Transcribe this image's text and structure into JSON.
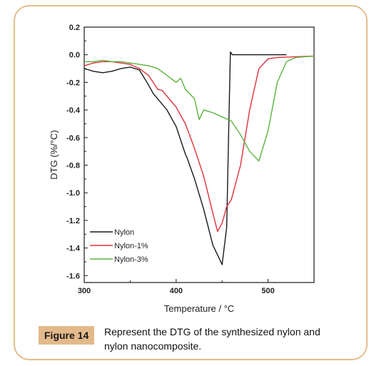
{
  "figure": {
    "badge": "Figure 14",
    "caption": "Represent the DTG of the synthesized nylon and nylon nanocomposite.",
    "border_color": "#e3bd8a",
    "badge_color": "#e3b98a"
  },
  "chart_data": {
    "type": "line",
    "title": "",
    "xlabel": "Temperature / °C",
    "ylabel": "DTG (%/°C)",
    "xlim": [
      300,
      550
    ],
    "ylim": [
      -1.65,
      0.2
    ],
    "x_ticks": [
      "300",
      "400",
      "500"
    ],
    "y_ticks": [
      "0.2",
      "0.0",
      "-0.2",
      "-0.4",
      "-0.6",
      "-0.8",
      "-1.0",
      "-1.2",
      "-1.4",
      "-1.6"
    ],
    "legend_position": "bottom-left",
    "grid": false,
    "series": [
      {
        "name": "Nylon",
        "color": "#1a1a1a",
        "x": [
          300,
          310,
          320,
          330,
          340,
          350,
          360,
          370,
          375,
          380,
          390,
          400,
          410,
          412,
          420,
          430,
          440,
          450,
          455,
          457,
          459,
          461,
          470,
          520
        ],
        "y": [
          -0.1,
          -0.12,
          -0.13,
          -0.12,
          -0.1,
          -0.09,
          -0.11,
          -0.22,
          -0.28,
          -0.32,
          -0.4,
          -0.52,
          -0.72,
          -0.75,
          -0.9,
          -1.12,
          -1.38,
          -1.52,
          -1.25,
          -0.6,
          0.02,
          0.0,
          0.0,
          0.0
        ]
      },
      {
        "name": "Nylon-1%",
        "color": "#e0303a",
        "x": [
          300,
          310,
          320,
          330,
          340,
          350,
          360,
          370,
          380,
          385,
          390,
          400,
          410,
          420,
          430,
          440,
          445,
          450,
          455,
          460,
          470,
          480,
          490,
          500,
          510,
          550
        ],
        "y": [
          -0.08,
          -0.06,
          -0.05,
          -0.05,
          -0.06,
          -0.07,
          -0.1,
          -0.15,
          -0.25,
          -0.26,
          -0.3,
          -0.38,
          -0.5,
          -0.68,
          -0.88,
          -1.15,
          -1.28,
          -1.22,
          -1.1,
          -1.05,
          -0.8,
          -0.4,
          -0.1,
          -0.03,
          -0.02,
          -0.01
        ]
      },
      {
        "name": "Nylon-3%",
        "color": "#5ab43c",
        "x": [
          300,
          310,
          320,
          330,
          340,
          350,
          360,
          370,
          380,
          390,
          400,
          405,
          410,
          420,
          425,
          430,
          440,
          450,
          460,
          470,
          480,
          490,
          500,
          510,
          520,
          530,
          550
        ],
        "y": [
          -0.05,
          -0.05,
          -0.04,
          -0.05,
          -0.05,
          -0.06,
          -0.07,
          -0.08,
          -0.1,
          -0.15,
          -0.2,
          -0.17,
          -0.25,
          -0.32,
          -0.47,
          -0.4,
          -0.42,
          -0.45,
          -0.48,
          -0.58,
          -0.7,
          -0.77,
          -0.55,
          -0.2,
          -0.05,
          -0.02,
          -0.01
        ]
      }
    ]
  }
}
